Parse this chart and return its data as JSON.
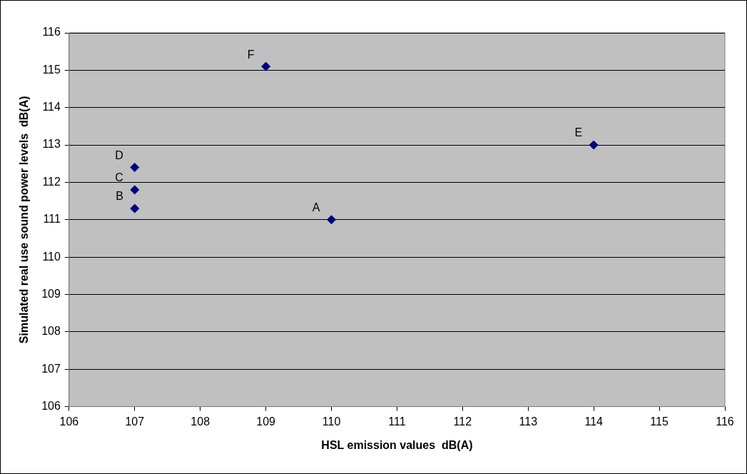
{
  "chart_data": {
    "type": "scatter",
    "xlabel": "HSL emission values  dB(A)",
    "ylabel": "Simulated real use sound power levels  dB(A)",
    "x": [
      110,
      107,
      107,
      107,
      114,
      109
    ],
    "series": [
      {
        "color": "#000080",
        "values": [
          111,
          111.3,
          111.8,
          112.4,
          113,
          115.1
        ]
      }
    ],
    "xlim": [
      106,
      116
    ],
    "xticks": [
      106,
      107,
      108,
      109,
      110,
      111,
      112,
      113,
      114,
      115,
      116
    ],
    "ylim": [
      106,
      116
    ],
    "yticks": [
      106,
      107,
      108,
      109,
      110,
      111,
      112,
      113,
      114,
      115,
      116
    ],
    "grid": "y",
    "legend": false,
    "marker": "diamond",
    "annotations": [
      {
        "text": "A",
        "x": 110,
        "y": 111
      },
      {
        "text": "B",
        "x": 107,
        "y": 111.3
      },
      {
        "text": "C",
        "x": 107,
        "y": 111.8
      },
      {
        "text": "D",
        "x": 107,
        "y": 112.4
      },
      {
        "text": "E",
        "x": 114,
        "y": 113
      },
      {
        "text": "F",
        "x": 109,
        "y": 115.1
      }
    ]
  }
}
